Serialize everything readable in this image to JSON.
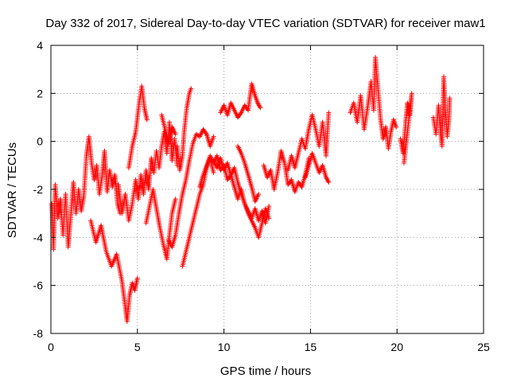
{
  "chart_data": {
    "type": "scatter",
    "title": "Day 332 of 2017, Sidereal Day-to-day VTEC variation (SDTVAR) for receiver maw1",
    "xlabel": "GPS time / hours",
    "ylabel": "SDTVAR / TECUs",
    "xlim": [
      0,
      25
    ],
    "ylim": [
      -8,
      4
    ],
    "x_ticks": [
      0,
      5,
      10,
      15,
      20,
      25
    ],
    "y_ticks": [
      -8,
      -6,
      -4,
      -2,
      0,
      2,
      4
    ],
    "grid": true,
    "marker": "+",
    "series": [
      {
        "name": "SDTVAR",
        "color": "#ff0000",
        "segments": [
          [
            [
              0.05,
              -2.6
            ],
            [
              0.15,
              -4.5
            ],
            [
              0.25,
              -1.8
            ],
            [
              0.4,
              -3.2
            ],
            [
              0.55,
              -2.4
            ],
            [
              0.7,
              -3.9
            ],
            [
              0.85,
              -2.2
            ],
            [
              1.0,
              -4.4
            ],
            [
              1.15,
              -3.1
            ],
            [
              1.3,
              -1.7
            ],
            [
              1.45,
              -3.0
            ],
            [
              1.6,
              -2.0
            ],
            [
              1.75,
              -2.9
            ],
            [
              1.9,
              -2.3
            ],
            [
              2.05,
              -0.6
            ],
            [
              2.2,
              0.2
            ],
            [
              2.35,
              -0.9
            ],
            [
              2.5,
              -1.6
            ],
            [
              2.65,
              -1.0
            ],
            [
              2.8,
              -2.2
            ],
            [
              2.95,
              -1.5
            ],
            [
              3.1,
              -0.4
            ],
            [
              3.25,
              -2.1
            ],
            [
              3.4,
              -1.2
            ],
            [
              3.55,
              -1.9
            ],
            [
              3.7,
              -1.4
            ],
            [
              3.85,
              -2.6
            ],
            [
              4.0,
              -3.0
            ]
          ],
          [
            [
              2.3,
              -3.3
            ],
            [
              2.6,
              -4.2
            ],
            [
              2.9,
              -3.5
            ],
            [
              3.2,
              -4.6
            ],
            [
              3.5,
              -5.2
            ],
            [
              3.8,
              -4.7
            ],
            [
              4.1,
              -5.8
            ],
            [
              4.3,
              -6.9
            ],
            [
              4.4,
              -7.5
            ],
            [
              4.55,
              -6.4
            ],
            [
              4.7,
              -5.9
            ],
            [
              4.85,
              -6.2
            ],
            [
              5.0,
              -5.7
            ]
          ],
          [
            [
              3.9,
              -1.8
            ],
            [
              4.1,
              -3.0
            ],
            [
              4.3,
              -2.2
            ],
            [
              4.5,
              -3.3
            ],
            [
              4.7,
              -2.6
            ],
            [
              4.9,
              -1.6
            ],
            [
              5.05,
              -2.4
            ],
            [
              5.2,
              -1.4
            ],
            [
              5.35,
              -2.2
            ],
            [
              5.5,
              -1.2
            ],
            [
              5.65,
              -2.0
            ],
            [
              5.8,
              -0.7
            ],
            [
              5.95,
              -1.3
            ],
            [
              6.1,
              -0.4
            ],
            [
              6.25,
              -1.1
            ],
            [
              6.4,
              -0.2
            ],
            [
              6.55,
              0.4
            ],
            [
              6.7,
              -0.5
            ],
            [
              6.85,
              0.8
            ],
            [
              7.0,
              -0.8
            ],
            [
              7.15,
              0.1
            ],
            [
              7.3,
              -1.0
            ]
          ],
          [
            [
              4.5,
              -1.1
            ],
            [
              4.7,
              -0.2
            ],
            [
              4.9,
              0.4
            ],
            [
              5.1,
              1.6
            ],
            [
              5.25,
              2.3
            ],
            [
              5.4,
              1.4
            ],
            [
              5.55,
              0.9
            ]
          ],
          [
            [
              5.5,
              -3.4
            ],
            [
              5.7,
              -2.7
            ],
            [
              5.9,
              -2.0
            ],
            [
              6.1,
              -2.8
            ],
            [
              6.3,
              -3.6
            ],
            [
              6.5,
              -4.3
            ],
            [
              6.7,
              -4.9
            ],
            [
              6.85,
              -3.9
            ],
            [
              7.0,
              -3.0
            ],
            [
              7.2,
              -2.4
            ]
          ],
          [
            [
              6.4,
              1.1
            ],
            [
              6.6,
              0.5
            ],
            [
              6.8,
              -0.1
            ],
            [
              7.0,
              0.6
            ],
            [
              7.2,
              0.3
            ]
          ],
          [
            [
              7.3,
              -0.2
            ],
            [
              7.45,
              -1.2
            ],
            [
              7.6,
              -0.6
            ],
            [
              7.7,
              0.4
            ],
            [
              7.85,
              1.4
            ],
            [
              8.0,
              2.0
            ],
            [
              8.1,
              2.2
            ]
          ],
          [
            [
              6.8,
              -4.1
            ],
            [
              7.0,
              -4.4
            ],
            [
              7.2,
              -3.9
            ],
            [
              7.4,
              -3.0
            ],
            [
              7.6,
              -2.2
            ],
            [
              7.8,
              -1.6
            ],
            [
              8.0,
              -0.8
            ],
            [
              8.2,
              -0.1
            ],
            [
              8.4,
              0.3
            ],
            [
              8.6,
              0.2
            ],
            [
              8.8,
              0.5
            ],
            [
              9.0,
              0.3
            ],
            [
              9.2,
              -0.2
            ],
            [
              9.4,
              0.2
            ]
          ],
          [
            [
              7.6,
              -5.2
            ],
            [
              7.8,
              -4.6
            ],
            [
              8.0,
              -4.0
            ],
            [
              8.2,
              -3.4
            ],
            [
              8.4,
              -2.8
            ],
            [
              8.6,
              -2.2
            ],
            [
              8.8,
              -1.8
            ],
            [
              9.0,
              -1.1
            ],
            [
              9.2,
              -0.7
            ],
            [
              9.4,
              -1.3
            ]
          ],
          [
            [
              8.6,
              -1.9
            ],
            [
              8.8,
              -1.4
            ],
            [
              9.0,
              -1.0
            ],
            [
              9.2,
              -0.6
            ],
            [
              9.4,
              -0.9
            ],
            [
              9.6,
              -0.6
            ],
            [
              9.8,
              -1.2
            ],
            [
              10.0,
              -1.0
            ],
            [
              10.2,
              -1.6
            ],
            [
              10.4,
              -1.4
            ],
            [
              10.6,
              -1.9
            ],
            [
              10.8,
              -2.4
            ],
            [
              11.0,
              -2.0
            ],
            [
              11.2,
              -2.6
            ],
            [
              11.4,
              -2.9
            ],
            [
              11.6,
              -3.2
            ],
            [
              11.8,
              -2.8
            ],
            [
              12.0,
              -3.3
            ],
            [
              12.2,
              -2.9
            ],
            [
              12.4,
              -3.4
            ],
            [
              12.6,
              -2.7
            ]
          ],
          [
            [
              9.4,
              -0.8
            ],
            [
              9.6,
              -1.1
            ],
            [
              9.8,
              -0.7
            ],
            [
              10.0,
              -1.2
            ],
            [
              10.2,
              -0.9
            ],
            [
              10.4,
              -1.4
            ],
            [
              10.6,
              -1.1
            ],
            [
              10.8,
              -1.7
            ],
            [
              11.0,
              -2.2
            ],
            [
              11.2,
              -2.6
            ],
            [
              11.4,
              -3.0
            ],
            [
              11.6,
              -3.3
            ],
            [
              11.8,
              -3.6
            ],
            [
              12.0,
              -4.0
            ],
            [
              12.2,
              -3.4
            ],
            [
              12.4,
              -2.8
            ],
            [
              12.6,
              -3.2
            ]
          ],
          [
            [
              10.8,
              -0.2
            ],
            [
              11.0,
              -0.5
            ],
            [
              11.2,
              -0.9
            ],
            [
              11.4,
              -1.4
            ],
            [
              11.6,
              -1.9
            ],
            [
              11.8,
              -2.5
            ],
            [
              12.0,
              -2.2
            ]
          ],
          [
            [
              9.8,
              1.2
            ],
            [
              10.0,
              1.5
            ],
            [
              10.2,
              1.1
            ],
            [
              10.4,
              1.6
            ],
            [
              10.6,
              1.3
            ],
            [
              10.8,
              1.0
            ],
            [
              11.0,
              1.2
            ],
            [
              11.2,
              1.5
            ],
            [
              11.4,
              1.3
            ],
            [
              11.6,
              2.4
            ],
            [
              11.8,
              1.9
            ],
            [
              11.95,
              1.6
            ],
            [
              12.1,
              1.4
            ]
          ],
          [
            [
              12.3,
              -1.0
            ],
            [
              12.5,
              -1.5
            ],
            [
              12.7,
              -1.2
            ],
            [
              12.9,
              -2.0
            ],
            [
              13.1,
              -1.3
            ],
            [
              13.3,
              -0.4
            ],
            [
              13.5,
              -0.9
            ],
            [
              13.7,
              -1.8
            ],
            [
              13.9,
              -1.6
            ],
            [
              14.1,
              -2.1
            ],
            [
              14.3,
              -1.7
            ],
            [
              14.5,
              -1.9
            ],
            [
              14.7,
              -1.4
            ],
            [
              14.9,
              -0.7
            ]
          ],
          [
            [
              13.7,
              -1.2
            ],
            [
              13.9,
              -0.6
            ],
            [
              14.1,
              -1.1
            ],
            [
              14.3,
              -0.5
            ],
            [
              14.5,
              0.1
            ],
            [
              14.7,
              -0.3
            ],
            [
              14.9,
              0.5
            ],
            [
              15.1,
              1.1
            ],
            [
              15.3,
              0.5
            ],
            [
              15.5,
              -0.2
            ],
            [
              15.7,
              0.8
            ],
            [
              15.9,
              -0.6
            ],
            [
              16.05,
              1.2
            ]
          ],
          [
            [
              14.7,
              -1.5
            ],
            [
              14.9,
              -1.0
            ],
            [
              15.1,
              -0.5
            ],
            [
              15.3,
              -0.9
            ],
            [
              15.5,
              -1.3
            ],
            [
              15.7,
              -1.0
            ],
            [
              15.9,
              -1.5
            ],
            [
              16.05,
              -1.7
            ]
          ],
          [
            [
              17.3,
              1.2
            ],
            [
              17.5,
              1.6
            ],
            [
              17.7,
              0.8
            ],
            [
              17.9,
              1.9
            ],
            [
              18.1,
              0.5
            ],
            [
              18.3,
              1.4
            ],
            [
              18.5,
              2.5
            ],
            [
              18.65,
              1.3
            ],
            [
              18.75,
              3.5
            ],
            [
              18.9,
              2.2
            ],
            [
              19.05,
              0.9
            ],
            [
              19.2,
              0.1
            ],
            [
              19.35,
              0.6
            ],
            [
              19.5,
              -0.3
            ],
            [
              19.65,
              0.4
            ],
            [
              19.8,
              0.9
            ],
            [
              19.95,
              0.6
            ]
          ],
          [
            [
              20.2,
              0.1
            ],
            [
              20.35,
              -0.5
            ],
            [
              20.5,
              0.8
            ],
            [
              20.6,
              1.6
            ],
            [
              20.75,
              1.1
            ],
            [
              20.85,
              2.0
            ],
            [
              20.4,
              -0.9
            ]
          ],
          [
            [
              22.1,
              1.0
            ],
            [
              22.25,
              0.3
            ],
            [
              22.4,
              1.5
            ],
            [
              22.5,
              0.5
            ],
            [
              22.6,
              -0.2
            ],
            [
              22.7,
              2.7
            ],
            [
              22.8,
              1.2
            ],
            [
              22.9,
              0.2
            ],
            [
              23.0,
              0.9
            ],
            [
              23.05,
              1.8
            ]
          ]
        ]
      }
    ]
  }
}
